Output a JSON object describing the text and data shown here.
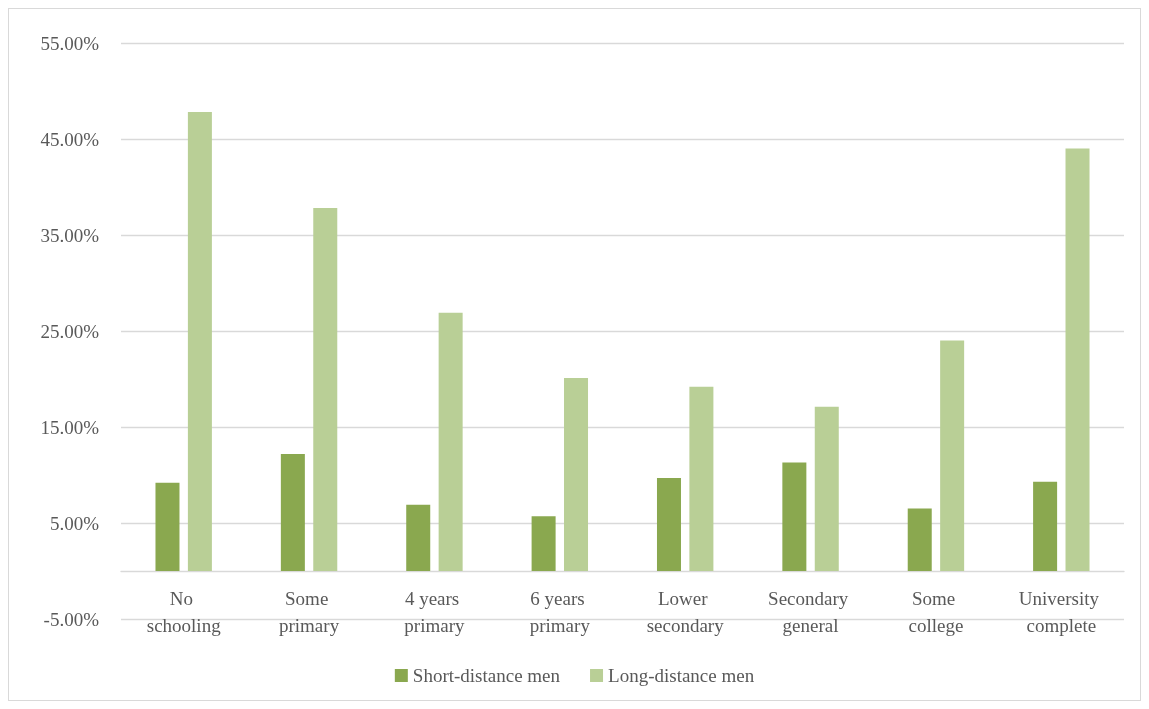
{
  "chart_data": {
    "type": "bar",
    "categories": [
      "No schooling",
      "Some primary",
      "4 years primary",
      "6 years primary",
      "Lower secondary",
      "Secondary general",
      "Some college",
      "University complete"
    ],
    "series": [
      {
        "name": "Short-distance men",
        "color": "#8aa84f",
        "values": [
          9.2,
          12.2,
          6.9,
          5.7,
          9.7,
          11.3,
          6.5,
          9.3
        ]
      },
      {
        "name": "Long-distance men",
        "color": "#b9cf96",
        "values": [
          47.8,
          37.8,
          26.9,
          20.1,
          19.2,
          17.1,
          24.0,
          44.0
        ]
      }
    ],
    "ylim": [
      -5,
      55
    ],
    "yticks": [
      {
        "value": -5,
        "label": "-5.00%"
      },
      {
        "value": 5,
        "label": "5.00%"
      },
      {
        "value": 15,
        "label": "15.00%"
      },
      {
        "value": 25,
        "label": "25.00%"
      },
      {
        "value": 35,
        "label": "35.00%"
      },
      {
        "value": 45,
        "label": "45.00%"
      },
      {
        "value": 55,
        "label": "55.00%"
      }
    ],
    "grid": "y",
    "legend": "bottom"
  }
}
